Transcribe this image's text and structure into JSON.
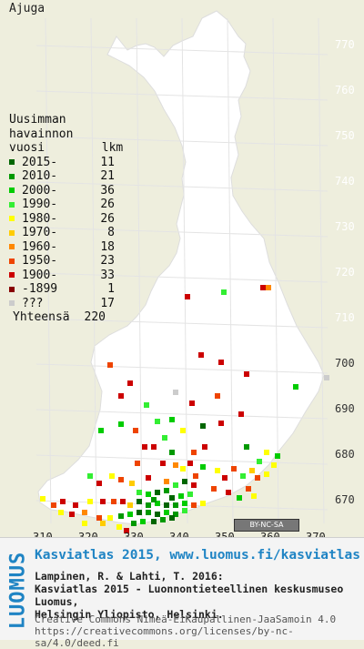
{
  "map_title": "Ajuga",
  "legend": {
    "heading": [
      "Uusimman",
      "havainnon",
      "vuosi        lkm"
    ],
    "rows": [
      {
        "label": "2015-",
        "count": "11",
        "color": "#006600"
      },
      {
        "label": "2010-",
        "count": "21",
        "color": "#009900"
      },
      {
        "label": "2000-",
        "count": "36",
        "color": "#00cc00"
      },
      {
        "label": "1990-",
        "count": "26",
        "color": "#33ee33"
      },
      {
        "label": "1980-",
        "count": "26",
        "color": "#ffff00"
      },
      {
        "label": "1970-",
        "count": "8",
        "color": "#ffcc00"
      },
      {
        "label": "1960-",
        "count": "18",
        "color": "#ff8800"
      },
      {
        "label": "1950-",
        "count": "23",
        "color": "#ee4400"
      },
      {
        "label": "1900-",
        "count": "33",
        "color": "#cc0000"
      },
      {
        "label": "-1899",
        "count": "1",
        "color": "#880000"
      },
      {
        "label": "???",
        "count": "17",
        "color": "#cccccc"
      }
    ],
    "total_label": "Yhteensä",
    "total_count": "220"
  },
  "grid": {
    "north_labels": [
      "770",
      "760",
      "750",
      "740",
      "730",
      "720",
      "710",
      "700",
      "690",
      "680",
      "670"
    ],
    "east_labels": [
      "310",
      "320",
      "330",
      "340",
      "350",
      "360",
      "370"
    ]
  },
  "license_badge": "BY-NC-SA",
  "footer": {
    "brand": "LUOMUS",
    "site": "Kasviatlas 2015, www.luomus.fi/kasviatlas",
    "citation": [
      "Lampinen, R. & Lahti, T. 2016:",
      "Kasviatlas 2015 - Luonnontieteellinen keskusmuseo Luomus,",
      "Helsingin Yliopisto, Helsinki."
    ],
    "license": [
      "Creative Commons Nimeä-EiKaupallinen-JaaSamoin 4.0",
      "https://creativecommons.org/licenses/by-nc-sa/4.0/deed.fi"
    ]
  },
  "colors": {
    "land": "#ffffff",
    "sea": "#eeeedd",
    "brand_blue": "#1f84c4"
  }
}
